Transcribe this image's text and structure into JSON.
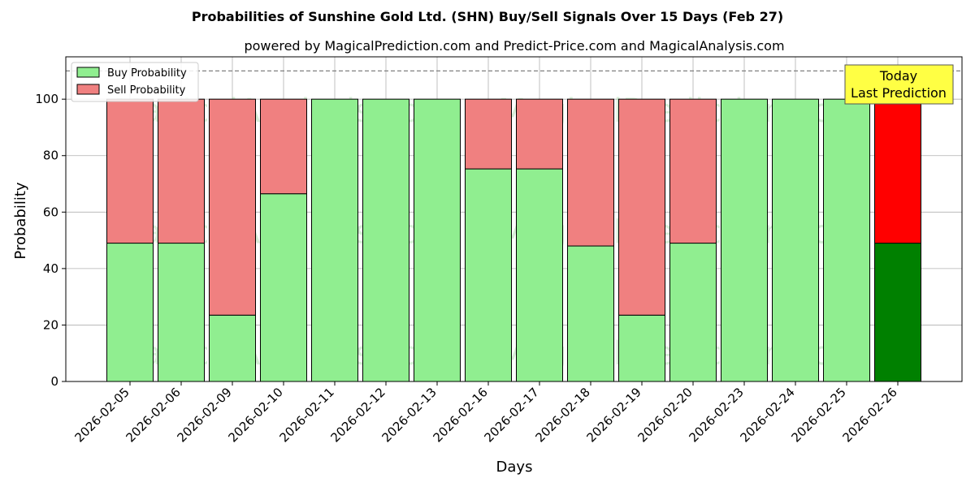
{
  "chart_data": {
    "type": "bar",
    "stacked": true,
    "title": "Probabilities of Sunshine Gold Ltd. (SHN) Buy/Sell Signals Over 15 Days (Feb 27)",
    "subtitle": "powered by MagicalPrediction.com and Predict-Price.com and MagicalAnalysis.com",
    "xlabel": "Days",
    "ylabel": "Probability",
    "ylim": [
      0,
      115
    ],
    "yticks": [
      0,
      20,
      40,
      60,
      80,
      100
    ],
    "grid": true,
    "legend_position": "top-left",
    "reference_line": 110,
    "categories": [
      "2026-02-05",
      "2026-02-06",
      "2026-02-09",
      "2026-02-10",
      "2026-02-11",
      "2026-02-12",
      "2026-02-13",
      "2026-02-16",
      "2026-02-17",
      "2026-02-18",
      "2026-02-19",
      "2026-02-20",
      "2026-02-23",
      "2026-02-24",
      "2026-02-25",
      "2026-02-26"
    ],
    "series": [
      {
        "name": "Buy Probability",
        "color": "#90ee90",
        "highlight_color": "#008000",
        "values": [
          49,
          49,
          23.5,
          66.5,
          100,
          100,
          100,
          75.3,
          75.3,
          48,
          23.5,
          49,
          100,
          100,
          100,
          49
        ]
      },
      {
        "name": "Sell Probability",
        "color": "#f08080",
        "highlight_color": "#ff0000",
        "values": [
          51,
          51,
          76.5,
          33.5,
          0,
          0,
          0,
          24.7,
          24.7,
          52,
          76.5,
          51,
          0,
          0,
          0,
          51
        ]
      }
    ],
    "annotation": {
      "line1": "Today",
      "line2": "Last Prediction",
      "color": "#ffff44"
    },
    "watermarks": [
      "MagicalAnalysis.com",
      "MagicalPrediction.com"
    ]
  }
}
